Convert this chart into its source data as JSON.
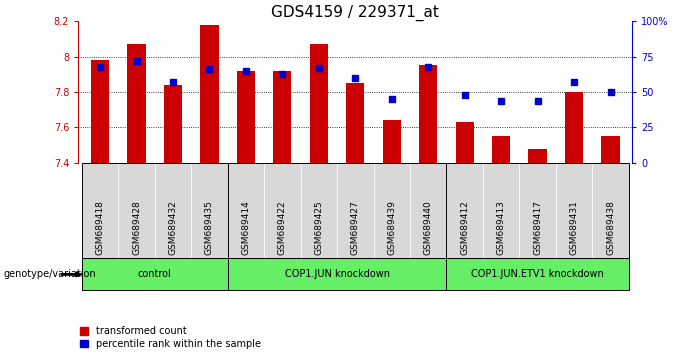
{
  "title": "GDS4159 / 229371_at",
  "samples": [
    "GSM689418",
    "GSM689428",
    "GSM689432",
    "GSM689435",
    "GSM689414",
    "GSM689422",
    "GSM689425",
    "GSM689427",
    "GSM689439",
    "GSM689440",
    "GSM689412",
    "GSM689413",
    "GSM689417",
    "GSM689431",
    "GSM689438"
  ],
  "bar_values": [
    7.98,
    8.07,
    7.84,
    8.18,
    7.92,
    7.92,
    8.07,
    7.85,
    7.64,
    7.95,
    7.63,
    7.55,
    7.48,
    7.8,
    7.55
  ],
  "percentile_values": [
    68,
    72,
    57,
    66,
    65,
    63,
    67,
    60,
    45,
    68,
    48,
    44,
    44,
    57,
    50
  ],
  "ymin": 7.4,
  "ymax": 8.2,
  "yticks": [
    7.4,
    7.6,
    7.8,
    8.0,
    8.2
  ],
  "right_yticks": [
    0,
    25,
    50,
    75,
    100
  ],
  "right_yticklabels": [
    "0",
    "25",
    "50",
    "75",
    "100%"
  ],
  "bar_color": "#cc0000",
  "marker_color": "#0000cc",
  "background_color": "#ffffff",
  "group_labels": [
    "control",
    "COP1.JUN knockdown",
    "COP1.JUN.ETV1 knockdown"
  ],
  "group_ranges": [
    [
      0,
      4
    ],
    [
      4,
      10
    ],
    [
      10,
      15
    ]
  ],
  "group_tick_color": "#cccccc",
  "group_box_color": "#66ee66",
  "xlabel": "genotype/variation",
  "legend_red": "transformed count",
  "legend_blue": "percentile rank within the sample",
  "bar_width": 0.5,
  "yaxis_color": "#cc0000",
  "right_axis_color": "#0000cc",
  "title_fontsize": 11,
  "tick_fontsize": 7,
  "label_fontsize": 8
}
